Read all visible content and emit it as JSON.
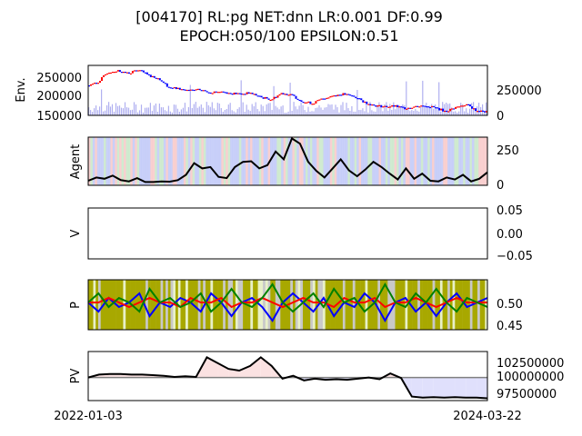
{
  "title_line1": "[004170] RL:pg NET:dnn LR:0.001 DF:0.99",
  "title_line2": "EPOCH:050/100 EPSILON:0.51",
  "x_ticks": [
    "2022-01-03",
    "2024-03-22"
  ],
  "chart_data": [
    {
      "type": "line",
      "panel": "env",
      "ylabel": "Env.",
      "left_ticks": [
        "250000",
        "200000",
        "150000"
      ],
      "right_ticks": [
        "250000",
        "0"
      ],
      "ylim": [
        150000,
        275000
      ],
      "volume_ylim": [
        0,
        1100000
      ],
      "series": [
        {
          "values": [
            225000,
            232000,
            258000,
            262000,
            255000,
            264000,
            250000,
            242000,
            220000,
            216000,
            212000,
            214000,
            208000,
            210000,
            205000,
            204000,
            206000,
            195000,
            190000,
            206000,
            200000,
            185000,
            180000,
            192000,
            200000,
            203000,
            198000,
            184000,
            175000,
            172000,
            173000,
            168000,
            172000,
            175000,
            169000,
            160000,
            170000,
            178000,
            162000,
            158000
          ]
        }
      ],
      "colors": {
        "up": "#ff0000",
        "down": "#0000ff",
        "volume": "#b0b0f0"
      }
    },
    {
      "type": "line",
      "panel": "agent",
      "ylabel": "Agent",
      "right_ticks": [
        "250",
        "0"
      ],
      "ylim": [
        -20,
        350
      ],
      "series": [
        {
          "values": [
            15,
            40,
            30,
            55,
            20,
            10,
            35,
            5,
            5,
            10,
            8,
            20,
            60,
            150,
            110,
            120,
            45,
            35,
            120,
            160,
            165,
            110,
            135,
            240,
            180,
            340,
            300,
            160,
            90,
            40,
            110,
            180,
            95,
            50,
            100,
            160,
            120,
            70,
            25,
            110,
            30,
            70,
            15,
            10,
            40,
            25,
            60,
            10,
            30,
            80
          ]
        }
      ],
      "colors": {
        "line": "#000000",
        "band_blue": "#c0c8f8",
        "band_red": "#f8c8c8",
        "band_green": "#c8e8c8"
      }
    },
    {
      "type": "line",
      "panel": "v",
      "ylabel": "V",
      "right_ticks": [
        "0.05",
        "0.00",
        "−0.05"
      ],
      "ylim": [
        -0.06,
        0.06
      ],
      "series": []
    },
    {
      "type": "line",
      "panel": "p",
      "ylabel": "P",
      "right_ticks": [
        "0.50",
        "0.45"
      ],
      "ylim": [
        0.44,
        0.55
      ],
      "series": [
        {
          "values": [
            0.5,
            0.48,
            0.51,
            0.49,
            0.5,
            0.52,
            0.47,
            0.5,
            0.49,
            0.51,
            0.5,
            0.48,
            0.52,
            0.5,
            0.47,
            0.5,
            0.51,
            0.49,
            0.46,
            0.5,
            0.52,
            0.5,
            0.48,
            0.51,
            0.47,
            0.5,
            0.49,
            0.52,
            0.5,
            0.46,
            0.5,
            0.51,
            0.48,
            0.5,
            0.47,
            0.5,
            0.52,
            0.49,
            0.5,
            0.51
          ],
          "color": "#0000ff"
        },
        {
          "values": [
            0.5,
            0.5,
            0.51,
            0.5,
            0.49,
            0.5,
            0.51,
            0.5,
            0.5,
            0.49,
            0.51,
            0.5,
            0.5,
            0.51,
            0.49,
            0.5,
            0.5,
            0.51,
            0.5,
            0.49,
            0.5,
            0.51,
            0.5,
            0.5,
            0.49,
            0.51,
            0.5,
            0.5,
            0.51,
            0.49,
            0.5,
            0.5,
            0.51,
            0.5,
            0.49,
            0.5,
            0.51,
            0.5,
            0.5,
            0.5
          ],
          "color": "#ff0000"
        },
        {
          "values": [
            0.5,
            0.52,
            0.49,
            0.51,
            0.5,
            0.48,
            0.53,
            0.5,
            0.51,
            0.49,
            0.5,
            0.52,
            0.48,
            0.5,
            0.53,
            0.5,
            0.49,
            0.51,
            0.54,
            0.5,
            0.48,
            0.5,
            0.52,
            0.49,
            0.53,
            0.5,
            0.51,
            0.48,
            0.5,
            0.54,
            0.5,
            0.49,
            0.52,
            0.5,
            0.53,
            0.5,
            0.48,
            0.51,
            0.5,
            0.49
          ],
          "color": "#008000"
        }
      ],
      "colors": {
        "band_olive": "#a8a800",
        "band_light": "#e8f0c8"
      }
    },
    {
      "type": "line",
      "panel": "pv",
      "ylabel": "PV",
      "right_ticks": [
        "102500000",
        "100000000",
        "97500000"
      ],
      "ylim": [
        96000000,
        104500000
      ],
      "baseline": 100000000,
      "series": [
        {
          "values": [
            100000000,
            100500000,
            100600000,
            100600000,
            100500000,
            100500000,
            100400000,
            100300000,
            100100000,
            100200000,
            100100000,
            103500000,
            102500000,
            101500000,
            101200000,
            102000000,
            103500000,
            102000000,
            99800000,
            100300000,
            99500000,
            99800000,
            99600000,
            99700000,
            99600000,
            99800000,
            100000000,
            99700000,
            100700000,
            99900000,
            96700000,
            96500000,
            96600000,
            96500000,
            96600000,
            96500000,
            96500000,
            96400000
          ]
        }
      ],
      "colors": {
        "line": "#000000",
        "gain_fill": "#fbe2e2",
        "loss_fill": "#e0e0fc",
        "baseline": "#808080"
      }
    }
  ]
}
